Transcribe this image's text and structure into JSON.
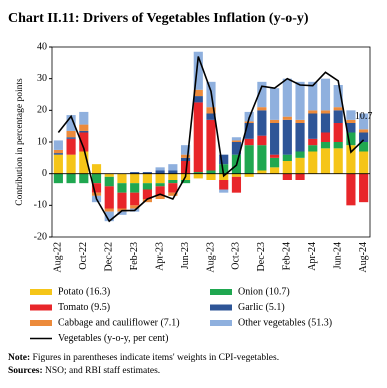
{
  "chart_data": {
    "type": "stacked-bar-line",
    "title": "Chart II.11: Drivers of Vegetables Inflation (y-o-y)",
    "y_label": "Contribution in percentage points",
    "categories": [
      "Aug-22",
      null,
      "Oct-22",
      null,
      "Dec-22",
      null,
      "Feb-23",
      null,
      "Apr-23",
      null,
      "Jun-23",
      null,
      "Aug-23",
      null,
      "Oct-23",
      null,
      "Dec-23",
      null,
      "Feb-24",
      null,
      "Apr-24",
      null,
      "Jun-24",
      null,
      "Aug-24"
    ],
    "series": [
      {
        "name": "Potato (16.3)",
        "color": "#f5c518",
        "values": [
          6,
          6,
          7,
          3,
          -1,
          -3,
          -3,
          -3,
          -3,
          -2,
          -2,
          -1.5,
          -2,
          -2,
          -1,
          -1,
          1,
          2,
          4,
          5,
          7,
          8,
          8,
          9,
          7
        ]
      },
      {
        "name": "Onion (10.7)",
        "color": "#1fa750",
        "values": [
          -3,
          -3,
          -3,
          -3,
          -3,
          -3,
          -3,
          -2,
          -1,
          -1,
          -1,
          0.5,
          1,
          3,
          6,
          9,
          8,
          3,
          2,
          2,
          2,
          2,
          2,
          4,
          3
        ]
      },
      {
        "name": "Tomato (9.5)",
        "color": "#e8262a",
        "values": [
          0,
          5,
          6,
          -3,
          -7,
          -5,
          -4,
          -3,
          -3,
          -3,
          4,
          22,
          16,
          -3,
          -5,
          2,
          3,
          1,
          -2,
          -2,
          2,
          3,
          6,
          -10,
          -9
        ]
      },
      {
        "name": "Garlic (5.1)",
        "color": "#2e5597",
        "values": [
          0.5,
          0.5,
          0.5,
          0,
          0,
          0,
          0.5,
          0.5,
          1,
          1,
          1,
          2,
          2,
          3,
          4,
          5,
          8,
          10,
          11,
          9,
          8,
          6,
          4,
          3,
          3
        ]
      },
      {
        "name": "Cabbage and cauliflower (7.1)",
        "color": "#ec8a3b",
        "values": [
          1,
          2,
          2,
          -1,
          -1,
          -1,
          -1,
          -1,
          -1,
          -1,
          1,
          2,
          2,
          0,
          0.5,
          0.5,
          1,
          1,
          1,
          1,
          1,
          1,
          1,
          1,
          1
        ]
      },
      {
        "name": "Other vegetables (51.3)",
        "color": "#8fb0de",
        "values": [
          3,
          5,
          4,
          -2,
          -3,
          -1,
          -1,
          0,
          1,
          2,
          3,
          12,
          8,
          -1,
          1,
          3,
          8,
          10,
          12,
          12,
          9,
          10,
          7,
          3,
          5
        ]
      }
    ],
    "line": {
      "name": "Vegetables (y-o-y, per cent)",
      "color": "#000000",
      "values": [
        13,
        18.1,
        8,
        -8,
        -15,
        -11.7,
        -11.6,
        -8,
        -6.5,
        -8,
        -0.9,
        37,
        26,
        -0.7,
        2.7,
        17.6,
        27.6,
        27,
        30,
        28,
        27.8,
        32,
        29.3,
        6.8,
        10.7
      ]
    },
    "annotation": "10.7",
    "ylim": [
      -20,
      40
    ],
    "yticks": [
      -20,
      -10,
      0,
      10,
      20,
      30,
      40
    ],
    "notes": [
      {
        "label": "Note:",
        "text": "Figures in parentheses indicate items' weights in CPI-vegetables."
      },
      {
        "label": "Sources:",
        "text": "NSO; and RBI staff estimates."
      }
    ]
  }
}
